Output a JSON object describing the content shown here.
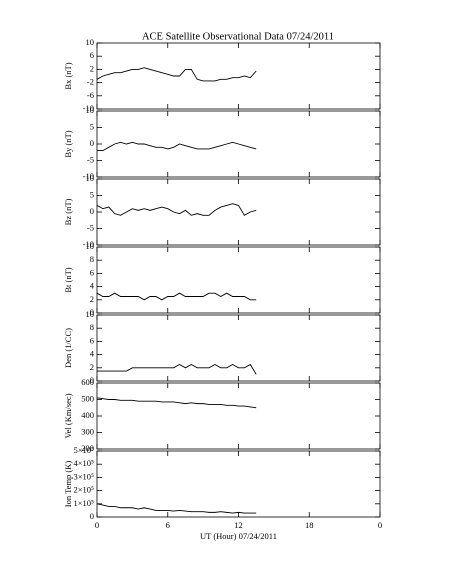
{
  "chart_data": [
    {
      "type": "line",
      "title": "ACE Satellite Observational Data   07/24/2011",
      "ylabel": "Bx (nT)",
      "ylim": [
        -10,
        10
      ],
      "yticks": [
        -10,
        -6,
        -2,
        2,
        6,
        10
      ],
      "color": "#000000",
      "x": [
        0,
        0.5,
        1,
        1.5,
        2,
        2.5,
        3,
        3.5,
        4,
        4.5,
        5,
        5.5,
        6,
        6.5,
        7,
        7.5,
        8,
        8.5,
        9,
        9.5,
        10,
        10.5,
        11,
        11.5,
        12,
        12.5,
        13,
        13.5
      ],
      "values": [
        -1,
        0,
        0.5,
        1,
        1,
        1.5,
        2,
        2,
        2.5,
        2,
        1.5,
        1,
        0.5,
        0,
        0,
        2,
        2,
        -1,
        -1.5,
        -1.5,
        -1.5,
        -1,
        -1,
        -0.5,
        -0.5,
        0,
        -0.5,
        1.5
      ]
    },
    {
      "type": "line",
      "ylabel": "By (nT)",
      "ylim": [
        -10,
        10
      ],
      "yticks": [
        -10,
        -5,
        0,
        5,
        10
      ],
      "color": "#000000",
      "x": [
        0,
        0.5,
        1,
        1.5,
        2,
        2.5,
        3,
        3.5,
        4,
        4.5,
        5,
        5.5,
        6,
        6.5,
        7,
        7.5,
        8,
        8.5,
        9,
        9.5,
        10,
        10.5,
        11,
        11.5,
        12,
        12.5,
        13,
        13.5
      ],
      "values": [
        -2,
        -2,
        -1,
        0,
        0.5,
        0,
        0.5,
        0,
        0,
        -0.5,
        -1,
        -1,
        -1.5,
        -1,
        0,
        -0.5,
        -1,
        -1.5,
        -1.5,
        -1.5,
        -1,
        -0.5,
        0,
        0.5,
        0,
        -0.5,
        -1,
        -1.5
      ]
    },
    {
      "type": "line",
      "ylabel": "Bz (nT)",
      "ylim": [
        -10,
        10
      ],
      "yticks": [
        -10,
        -5,
        0,
        5,
        10
      ],
      "color": "#000000",
      "x": [
        0,
        0.5,
        1,
        1.5,
        2,
        2.5,
        3,
        3.5,
        4,
        4.5,
        5,
        5.5,
        6,
        6.5,
        7,
        7.5,
        8,
        8.5,
        9,
        9.5,
        10,
        10.5,
        11,
        11.5,
        12,
        12.5,
        13,
        13.5
      ],
      "values": [
        2,
        1,
        1.5,
        -0.5,
        -1,
        0,
        1,
        0.5,
        1,
        0.5,
        1,
        1.5,
        1,
        0,
        -0.5,
        0.5,
        -1,
        -0.5,
        -1,
        -1,
        0.5,
        1.5,
        2,
        2.5,
        2,
        -1,
        0,
        0.5
      ]
    },
    {
      "type": "line",
      "ylabel": "Bt (nT)",
      "ylim": [
        0,
        10
      ],
      "yticks": [
        0,
        2,
        4,
        6,
        8,
        10
      ],
      "color": "#000000",
      "x": [
        0,
        0.5,
        1,
        1.5,
        2,
        2.5,
        3,
        3.5,
        4,
        4.5,
        5,
        5.5,
        6,
        6.5,
        7,
        7.5,
        8,
        8.5,
        9,
        9.5,
        10,
        10.5,
        11,
        11.5,
        12,
        12.5,
        13,
        13.5
      ],
      "values": [
        3,
        2.5,
        2.5,
        3,
        2.5,
        2.5,
        2.5,
        2.5,
        2,
        2.5,
        2.5,
        2,
        2.5,
        2.5,
        3,
        2.5,
        2.5,
        2.5,
        2.5,
        3,
        3,
        2.5,
        3,
        2.5,
        2.5,
        2.5,
        2,
        2
      ]
    },
    {
      "type": "line",
      "ylabel": "Den (1/CC)",
      "ylim": [
        0,
        10
      ],
      "yticks": [
        0,
        2,
        4,
        6,
        8,
        10
      ],
      "color": "#000000",
      "x": [
        0,
        0.5,
        1,
        1.5,
        2,
        2.5,
        3,
        3.5,
        4,
        4.5,
        5,
        5.5,
        6,
        6.5,
        7,
        7.5,
        8,
        8.5,
        9,
        9.5,
        10,
        10.5,
        11,
        11.5,
        12,
        12.5,
        13,
        13.5
      ],
      "values": [
        1.5,
        1.5,
        1.5,
        1.5,
        1.5,
        1.5,
        2,
        2,
        2,
        2,
        2,
        2,
        2,
        2,
        2.5,
        2,
        2.5,
        2,
        2,
        2,
        2.5,
        2,
        2,
        2.5,
        2,
        2,
        2.5,
        1
      ]
    },
    {
      "type": "line",
      "ylabel": "Vel (Km/sec)",
      "ylim": [
        200,
        600
      ],
      "yticks": [
        200,
        300,
        400,
        500,
        600
      ],
      "color": "#000000",
      "x": [
        0,
        0.5,
        1,
        1.5,
        2,
        2.5,
        3,
        3.5,
        4,
        4.5,
        5,
        5.5,
        6,
        6.5,
        7,
        7.5,
        8,
        8.5,
        9,
        9.5,
        10,
        10.5,
        11,
        11.5,
        12,
        12.5,
        13,
        13.5
      ],
      "values": [
        510,
        505,
        500,
        500,
        495,
        495,
        495,
        490,
        490,
        490,
        490,
        485,
        485,
        485,
        480,
        475,
        480,
        475,
        475,
        470,
        470,
        470,
        465,
        465,
        460,
        460,
        455,
        450
      ]
    },
    {
      "type": "line",
      "ylabel": "Ion Temp (K)",
      "ylim": [
        0,
        500000
      ],
      "yticks": [
        0,
        {
          "value": 100000,
          "label": "1×10⁵"
        },
        {
          "value": 200000,
          "label": "2×10⁵"
        },
        {
          "value": 300000,
          "label": "3×10⁵"
        },
        {
          "value": 400000,
          "label": "4×10⁵"
        },
        {
          "value": 500000,
          "label": "5×10⁵"
        }
      ],
      "color": "#000000",
      "xlabel": "UT (Hour)   07/24/2011",
      "xlim": [
        0,
        24
      ],
      "xticks": [
        0,
        6,
        12,
        18,
        {
          "value": 24,
          "label": "0"
        }
      ],
      "x": [
        0,
        0.5,
        1,
        1.5,
        2,
        2.5,
        3,
        3.5,
        4,
        4.5,
        5,
        5.5,
        6,
        6.5,
        7,
        7.5,
        8,
        8.5,
        9,
        9.5,
        10,
        10.5,
        11,
        11.5,
        12,
        12.5,
        13,
        13.5
      ],
      "values": [
        100000,
        90000,
        80000,
        80000,
        70000,
        70000,
        70000,
        60000,
        70000,
        60000,
        50000,
        50000,
        50000,
        45000,
        50000,
        45000,
        40000,
        40000,
        40000,
        35000,
        35000,
        40000,
        35000,
        30000,
        35000,
        30000,
        30000,
        30000
      ]
    }
  ]
}
